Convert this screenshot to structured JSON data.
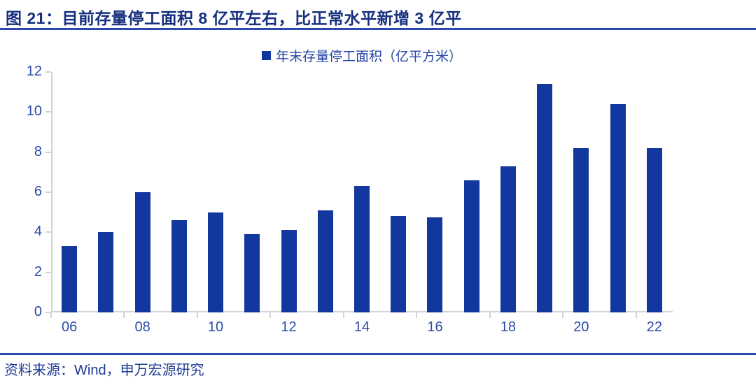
{
  "figure": {
    "title": "图 21：目前存量停工面积 8 亿平左右，比正常水平新增 3 亿平",
    "source": "资料来源：Wind，申万宏源研究"
  },
  "chart_data": {
    "type": "bar",
    "title": "年末存量停工面积（亿平方米）",
    "legend": [
      "年末存量停工面积（亿平方米）"
    ],
    "legend_position": "top-center",
    "categories": [
      "06",
      "07",
      "08",
      "09",
      "10",
      "11",
      "12",
      "13",
      "14",
      "15",
      "16",
      "17",
      "18",
      "19",
      "20",
      "21",
      "22"
    ],
    "values": [
      3.3,
      4.0,
      6.0,
      4.6,
      5.0,
      3.9,
      4.1,
      5.1,
      6.3,
      4.8,
      4.75,
      6.6,
      7.3,
      11.4,
      8.2,
      10.4,
      8.2
    ],
    "xtick_labels": [
      "06",
      "08",
      "10",
      "12",
      "14",
      "16",
      "18",
      "20",
      "22"
    ],
    "yticks": [
      0,
      2,
      4,
      6,
      8,
      10,
      12
    ],
    "ylim": [
      0,
      12
    ],
    "xlabel": "",
    "ylabel": "",
    "grid": false,
    "colors": {
      "bar": "#12379E",
      "axis_label": "#2B4BA8",
      "legend_text": "#2545A8",
      "title_text": "#16307F",
      "rule": "#2A49AB",
      "source_text": "#1E3A96",
      "axis_line": "#D0D3D7"
    }
  }
}
